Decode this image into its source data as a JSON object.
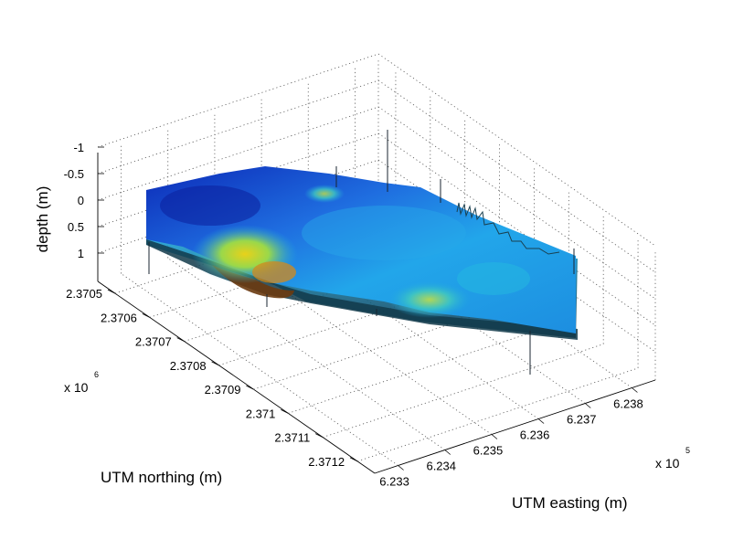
{
  "chart_data": {
    "type": "surface",
    "title": "",
    "xlabel": "UTM easting (m)",
    "ylabel": "UTM northing (m)",
    "zlabel": "depth (m)",
    "x_ticks": [
      "6.233",
      "6.234",
      "6.235",
      "6.236",
      "6.237",
      "6.238"
    ],
    "x_exponent_base": "x 10",
    "x_exponent_power": "5",
    "y_ticks": [
      "2.3705",
      "2.3706",
      "2.3707",
      "2.3708",
      "2.3709",
      "2.371",
      "2.3711",
      "2.3712"
    ],
    "y_exponent_base": "x 10",
    "y_exponent_power": "6",
    "z_ticks": [
      "-1",
      "-0.5",
      "0",
      "0.5",
      "1"
    ],
    "z_reversed": true,
    "xlim": [
      623250,
      623850
    ],
    "ylim": [
      2370450,
      2371250
    ],
    "zlim": [
      -1.2,
      1.2
    ],
    "grid": true,
    "colormap": "jet",
    "surface_color_low": "#0a1fb0",
    "surface_color_mid": "#1ea8e8",
    "surface_color_high": "#e6c81a",
    "surface_color_max": "#8a2a00"
  }
}
